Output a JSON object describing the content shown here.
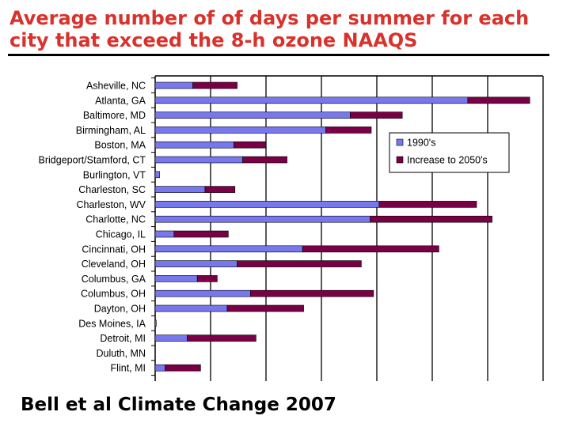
{
  "slide": {
    "title": "Average number of of days per summer for each city that exceed the 8-h ozone NAAQS",
    "citation": "Bell et al  Climate Change 2007"
  },
  "chart_data": {
    "type": "bar",
    "orientation": "horizontal",
    "stacked": true,
    "categories": [
      "Asheville, NC",
      "Atlanta, GA",
      "Baltimore, MD",
      "Birmingham, AL",
      "Boston, MA",
      "Bridgeport/Stamford, CT",
      "Burlington, VT",
      "Charleston, SC",
      "Charleston, WV",
      "Charlotte, NC",
      "Chicago, IL",
      "Cincinnati, OH",
      "Cleveland, OH",
      "Columbus, GA",
      "Columbus, OH",
      "Dayton, OH",
      "Des Moines, IA",
      "Detroit, MI",
      "Duluth, MN",
      "Flint, MI"
    ],
    "series": [
      {
        "name": "1990's",
        "color": "#7777ee",
        "values": [
          3.4,
          28.2,
          17.6,
          15.4,
          7.1,
          7.9,
          0.4,
          4.5,
          20.2,
          19.4,
          1.7,
          13.3,
          7.4,
          3.8,
          8.6,
          6.5,
          0.1,
          2.9,
          0,
          0.9
        ]
      },
      {
        "name": "Increase to 2050's",
        "color": "#7a0045",
        "values": [
          4.0,
          5.6,
          4.7,
          4.1,
          2.9,
          4.0,
          0,
          2.7,
          8.8,
          11.0,
          4.9,
          12.3,
          11.2,
          1.8,
          11.1,
          6.9,
          0,
          6.2,
          0,
          3.2
        ]
      }
    ],
    "xlim": [
      0,
      35
    ],
    "x_gridlines": [
      5,
      10,
      15,
      20,
      25,
      30,
      35
    ],
    "grid": true,
    "legend": "top-right",
    "title": "",
    "xlabel": "",
    "ylabel": ""
  }
}
